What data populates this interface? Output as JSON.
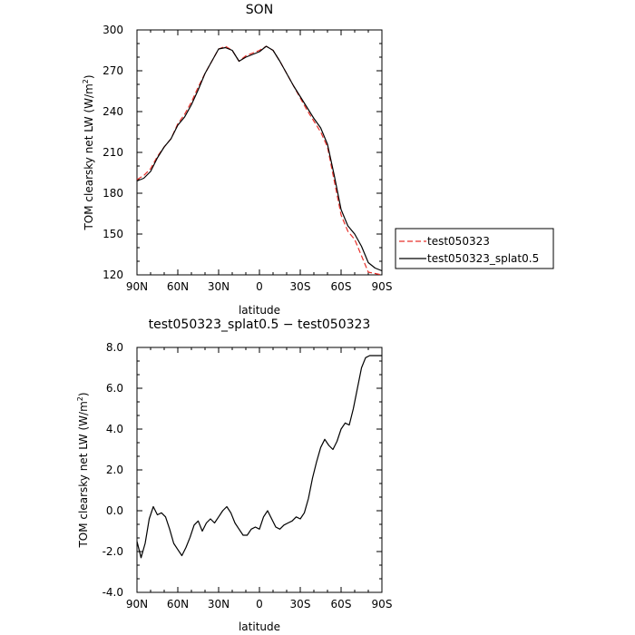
{
  "chart_data": [
    {
      "type": "line",
      "title": "SON",
      "xlabel": "latitude",
      "ylabel": "TOM clearsky net LW (W/m",
      "ylabel_sup": "2",
      "ylabel_close": ")",
      "x_ticks": [
        "90N",
        "60N",
        "30N",
        "0",
        "30S",
        "60S",
        "90S"
      ],
      "y_ticks": [
        "120",
        "150",
        "180",
        "210",
        "240",
        "270",
        "300"
      ],
      "xlim": [
        90,
        -90
      ],
      "ylim": [
        120,
        300
      ],
      "legend_position": "right",
      "x": [
        90,
        85,
        80,
        75,
        70,
        65,
        60,
        55,
        50,
        45,
        40,
        35,
        30,
        25,
        20,
        15,
        10,
        5,
        0,
        -5,
        -10,
        -15,
        -20,
        -25,
        -30,
        -35,
        -40,
        -45,
        -50,
        -55,
        -60,
        -65,
        -70,
        -75,
        -80,
        -85,
        -90
      ],
      "series": [
        {
          "name": "test050323",
          "color": "#e8302a",
          "dash": true,
          "values": [
            190,
            193,
            198,
            207,
            214,
            220,
            231,
            238,
            247,
            258,
            268,
            277,
            286,
            288,
            285,
            277,
            281,
            283,
            285,
            288,
            285,
            277,
            268,
            259,
            250,
            241,
            233,
            225,
            214,
            189,
            164,
            152,
            146,
            134,
            122,
            121,
            120
          ]
        },
        {
          "name": "test050323_splat0.5",
          "color": "#000000",
          "dash": false,
          "values": [
            189,
            191,
            196,
            206,
            214,
            220,
            230,
            236,
            245,
            256,
            268,
            277,
            286,
            287,
            285,
            277,
            280,
            282,
            284,
            288,
            285,
            277,
            268,
            259,
            251,
            243,
            235,
            228,
            216,
            193,
            168,
            156,
            150,
            141,
            129,
            125,
            123
          ]
        }
      ]
    },
    {
      "type": "line",
      "title": "test050323_splat0.5 − test050323",
      "xlabel": "latitude",
      "ylabel": "TOM clearsky net LW (W/m",
      "ylabel_sup": "2",
      "ylabel_close": ")",
      "x_ticks": [
        "90N",
        "60N",
        "30N",
        "0",
        "30S",
        "60S",
        "90S"
      ],
      "y_ticks": [
        "-4.0",
        "-2.0",
        "0.0",
        "2.0",
        "4.0",
        "6.0",
        "8.0"
      ],
      "xlim": [
        90,
        -90
      ],
      "ylim": [
        -4,
        8
      ],
      "x": [
        90,
        87,
        84,
        81,
        78,
        75,
        72,
        69,
        66,
        63,
        60,
        57,
        54,
        51,
        48,
        45,
        42,
        39,
        36,
        33,
        30,
        27,
        24,
        21,
        18,
        15,
        12,
        9,
        6,
        3,
        0,
        -3,
        -6,
        -9,
        -12,
        -15,
        -18,
        -21,
        -24,
        -27,
        -30,
        -33,
        -36,
        -39,
        -42,
        -45,
        -48,
        -51,
        -54,
        -57,
        -60,
        -63,
        -66,
        -69,
        -72,
        -75,
        -78,
        -81,
        -84,
        -87,
        -90
      ],
      "series": [
        {
          "name": "test050323_splat0.5 − test050323",
          "color": "#000000",
          "values": [
            -1.5,
            -2.3,
            -1.6,
            -0.4,
            0.2,
            -0.2,
            -0.1,
            -0.3,
            -0.9,
            -1.6,
            -1.9,
            -2.2,
            -1.8,
            -1.3,
            -0.7,
            -0.5,
            -1.0,
            -0.6,
            -0.4,
            -0.6,
            -0.3,
            0.0,
            0.2,
            -0.1,
            -0.6,
            -0.9,
            -1.2,
            -1.2,
            -0.9,
            -0.8,
            -0.9,
            -0.3,
            0.0,
            -0.4,
            -0.8,
            -0.9,
            -0.7,
            -0.6,
            -0.5,
            -0.3,
            -0.4,
            -0.1,
            0.6,
            1.6,
            2.4,
            3.1,
            3.5,
            3.2,
            3.0,
            3.4,
            4.0,
            4.3,
            4.2,
            5.0,
            6.0,
            7.0,
            7.5,
            7.6,
            7.6,
            7.6,
            7.6
          ]
        }
      ]
    }
  ]
}
